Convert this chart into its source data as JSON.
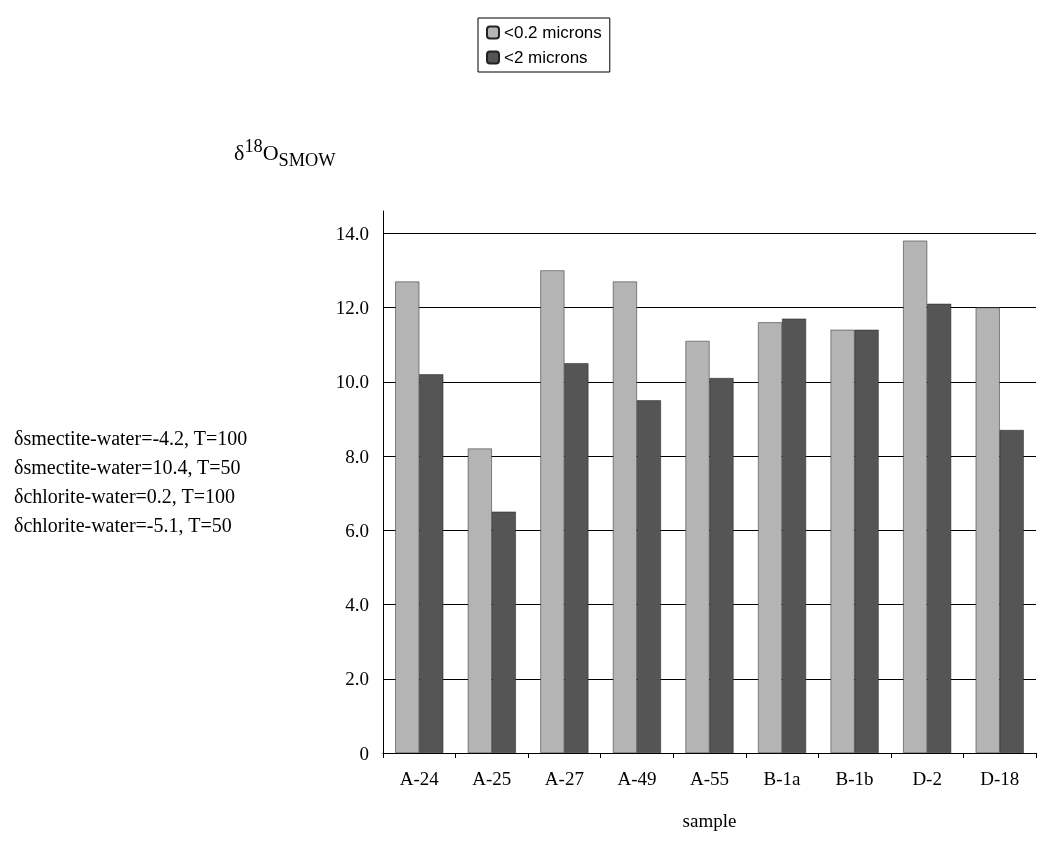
{
  "chart_data": {
    "type": "bar",
    "ylabel": "δ$^{18}$O$_{SMOW}$",
    "xlabel": "sample",
    "categories": [
      "A-24",
      "A-25",
      "A-27",
      "A-49",
      "A-55",
      "B-1a",
      "B-1b",
      "D-2",
      "D-18"
    ],
    "series": [
      {
        "name": "<0.2 microns",
        "color": "#b4b4b4",
        "values": [
          12.7,
          8.2,
          13.0,
          12.7,
          11.1,
          11.6,
          11.4,
          13.8,
          12.0
        ]
      },
      {
        "name": "<2 microns",
        "color": "#555555",
        "values": [
          10.2,
          6.5,
          10.5,
          9.5,
          10.1,
          11.7,
          11.4,
          12.1,
          8.7
        ]
      }
    ],
    "ylim": [
      0,
      14.6
    ],
    "yticks": [
      {
        "value": 0,
        "label": "0"
      },
      {
        "value": 2,
        "label": "2.0"
      },
      {
        "value": 4,
        "label": "4.0"
      },
      {
        "value": 6,
        "label": "6.0"
      },
      {
        "value": 8,
        "label": "8.0"
      },
      {
        "value": 10,
        "label": "10.0"
      },
      {
        "value": 12,
        "label": "12.0"
      },
      {
        "value": 14,
        "label": "14.0"
      }
    ],
    "grid": "y",
    "legend": "top",
    "annotations": [
      "δsmectite-water=-4.2, T=100",
      "δsmectite-water=10.4, T=50",
      "δchlorite-water=0.2, T=100",
      "δchlorite-water=-5.1, T=50"
    ]
  }
}
